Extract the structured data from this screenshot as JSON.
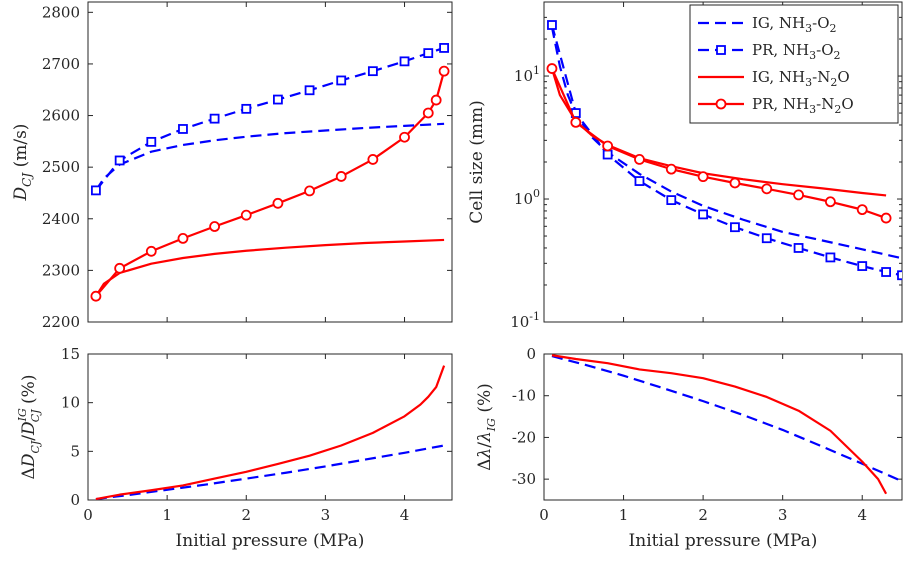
{
  "chart_data": [
    {
      "id": "dcj",
      "type": "line",
      "ylabel": "D_CJ (m/s)",
      "xlim": [
        0,
        4.6
      ],
      "ylim": [
        2200,
        2820
      ],
      "xticks": [],
      "yticks": [
        2200,
        2300,
        2400,
        2500,
        2600,
        2700,
        2800
      ],
      "series": [
        {
          "name": "IG, NH3-O2",
          "color": "#0000ff",
          "dash": "dashed",
          "marker": "none",
          "x": [
            0.1,
            0.2,
            0.4,
            0.8,
            1.2,
            1.6,
            2.0,
            2.5,
            3.0,
            3.5,
            4.0,
            4.5
          ],
          "y": [
            2455,
            2478,
            2505,
            2530,
            2543,
            2552,
            2559,
            2566,
            2571,
            2576,
            2580,
            2584
          ]
        },
        {
          "name": "PR, NH3-O2",
          "color": "#0000ff",
          "dash": "dashed",
          "marker": "square",
          "x": [
            0.1,
            0.4,
            0.8,
            1.2,
            1.6,
            2.0,
            2.4,
            2.8,
            3.2,
            3.6,
            4.0,
            4.3,
            4.5
          ],
          "y": [
            2455,
            2513,
            2549,
            2574,
            2594,
            2613,
            2631,
            2649,
            2668,
            2686,
            2705,
            2721,
            2731
          ]
        },
        {
          "name": "IG, NH3-N2O",
          "color": "#ff0000",
          "dash": "solid",
          "marker": "none",
          "x": [
            0.1,
            0.2,
            0.4,
            0.8,
            1.2,
            1.6,
            2.0,
            2.5,
            3.0,
            3.5,
            4.0,
            4.5
          ],
          "y": [
            2250,
            2274,
            2295,
            2313,
            2324,
            2332,
            2338,
            2344,
            2349,
            2353,
            2356,
            2359
          ]
        },
        {
          "name": "PR, NH3-N2O",
          "color": "#ff0000",
          "dash": "solid",
          "marker": "circle",
          "x": [
            0.1,
            0.4,
            0.8,
            1.2,
            1.6,
            2.0,
            2.4,
            2.8,
            3.2,
            3.6,
            4.0,
            4.3,
            4.4,
            4.5
          ],
          "y": [
            2250,
            2304,
            2337,
            2362,
            2385,
            2407,
            2430,
            2454,
            2482,
            2515,
            2558,
            2605,
            2630,
            2686
          ]
        }
      ]
    },
    {
      "id": "cell",
      "type": "line",
      "ylabel": "Cell size (mm)",
      "xlim": [
        0,
        4.5
      ],
      "ylim": [
        0.1,
        40
      ],
      "yscale": "log",
      "xticks": [],
      "yticks": [
        0.1,
        1,
        10
      ],
      "ytick_labels": [
        "10",
        "10",
        "10"
      ],
      "ytick_exponents": [
        "-1",
        "0",
        "1"
      ],
      "legend": {
        "placement": "top-right",
        "entries": [
          {
            "prefix": "IG, NH",
            "sub1": "3",
            "mid": "-O",
            "sub2": "2",
            "suffix": ""
          },
          {
            "prefix": "PR, NH",
            "sub1": "3",
            "mid": "-O",
            "sub2": "2",
            "suffix": ""
          },
          {
            "prefix": "IG, NH",
            "sub1": "3",
            "mid": "-N",
            "sub2": "2",
            "suffix": "O"
          },
          {
            "prefix": "PR, NH",
            "sub1": "3",
            "mid": "-N",
            "sub2": "2",
            "suffix": "O"
          }
        ]
      },
      "series": [
        {
          "name": "IG, NH3-O2",
          "color": "#0000ff",
          "dash": "dashed",
          "marker": "none",
          "x": [
            0.1,
            0.2,
            0.3,
            0.4,
            0.6,
            0.8,
            1.2,
            1.6,
            2.0,
            2.5,
            3.0,
            3.5,
            4.0,
            4.5
          ],
          "y": [
            25,
            12,
            7.0,
            4.9,
            3.2,
            2.4,
            1.6,
            1.15,
            0.88,
            0.68,
            0.54,
            0.46,
            0.39,
            0.33
          ]
        },
        {
          "name": "PR, NH3-O2",
          "color": "#0000ff",
          "dash": "dashed",
          "marker": "square",
          "x": [
            0.1,
            0.4,
            0.8,
            1.2,
            1.6,
            2.0,
            2.4,
            2.8,
            3.2,
            3.6,
            4.0,
            4.3,
            4.5
          ],
          "y": [
            26,
            5.0,
            2.3,
            1.4,
            0.98,
            0.75,
            0.59,
            0.48,
            0.4,
            0.335,
            0.285,
            0.255,
            0.24
          ]
        },
        {
          "name": "IG, NH3-N2O",
          "color": "#ff0000",
          "dash": "solid",
          "marker": "none",
          "x": [
            0.1,
            0.2,
            0.4,
            0.6,
            0.8,
            1.2,
            1.6,
            2.0,
            2.5,
            3.0,
            3.5,
            4.0,
            4.3
          ],
          "y": [
            11.5,
            7.0,
            4.3,
            3.3,
            2.75,
            2.15,
            1.85,
            1.62,
            1.45,
            1.32,
            1.22,
            1.12,
            1.07
          ]
        },
        {
          "name": "PR, NH3-N2O",
          "color": "#ff0000",
          "dash": "solid",
          "marker": "circle",
          "x": [
            0.1,
            0.4,
            0.8,
            1.2,
            1.6,
            2.0,
            2.4,
            2.8,
            3.2,
            3.6,
            4.0,
            4.3
          ],
          "y": [
            11.5,
            4.2,
            2.7,
            2.1,
            1.75,
            1.52,
            1.35,
            1.21,
            1.08,
            0.95,
            0.82,
            0.7
          ]
        }
      ]
    },
    {
      "id": "ddcj",
      "type": "line",
      "ylabel_parts": {
        "delta": "Δ",
        "d": "D",
        "sub1": "CJ",
        "slash": "/",
        "d2": "D",
        "sup": "IG",
        "sub2": "CJ",
        "unit": " (%)"
      },
      "xlabel": "Initial pressure (MPa)",
      "xlim": [
        0,
        4.6
      ],
      "ylim": [
        0,
        15
      ],
      "xticks": [
        0,
        1,
        2,
        3,
        4
      ],
      "yticks": [
        0,
        5,
        10,
        15
      ],
      "series": [
        {
          "name": "NH3-O2",
          "color": "#0000ff",
          "dash": "dashed",
          "x": [
            0.1,
            0.5,
            1.0,
            1.5,
            2.0,
            2.5,
            3.0,
            3.5,
            4.0,
            4.5
          ],
          "y": [
            0.1,
            0.5,
            1.05,
            1.6,
            2.2,
            2.8,
            3.45,
            4.15,
            4.85,
            5.6
          ]
        },
        {
          "name": "NH3-N2O",
          "color": "#ff0000",
          "dash": "solid",
          "x": [
            0.1,
            0.4,
            0.8,
            1.2,
            1.6,
            2.0,
            2.4,
            2.8,
            3.2,
            3.6,
            4.0,
            4.2,
            4.3,
            4.4,
            4.5
          ],
          "y": [
            0.1,
            0.55,
            1.0,
            1.5,
            2.2,
            2.9,
            3.7,
            4.55,
            5.6,
            6.9,
            8.6,
            9.8,
            10.6,
            11.6,
            13.8
          ]
        }
      ]
    },
    {
      "id": "dlam",
      "type": "line",
      "ylabel_parts": {
        "delta": "Δ",
        "lam": "λ",
        "slash": "/",
        "lam2": "λ",
        "sub": "IG",
        "unit": " (%)"
      },
      "xlabel": "Initial pressure (MPa)",
      "xlim": [
        0,
        4.5
      ],
      "ylim": [
        -35,
        0
      ],
      "xticks": [
        0,
        1,
        2,
        3,
        4
      ],
      "yticks": [
        -30,
        -20,
        -10,
        0
      ],
      "series": [
        {
          "name": "NH3-O2",
          "color": "#0000ff",
          "dash": "dashed",
          "x": [
            0.1,
            0.5,
            1.0,
            1.5,
            2.0,
            2.5,
            3.0,
            3.5,
            4.0,
            4.5
          ],
          "y": [
            -0.5,
            -2.5,
            -5.2,
            -8.2,
            -11.3,
            -14.6,
            -18.2,
            -22.2,
            -26.3,
            -30.5
          ]
        },
        {
          "name": "NH3-N2O",
          "color": "#ff0000",
          "dash": "solid",
          "x": [
            0.1,
            0.4,
            0.8,
            1.2,
            1.6,
            2.0,
            2.4,
            2.8,
            3.2,
            3.6,
            4.0,
            4.2,
            4.3
          ],
          "y": [
            -0.3,
            -1.2,
            -2.2,
            -3.7,
            -4.6,
            -5.8,
            -7.8,
            -10.3,
            -13.6,
            -18.4,
            -25.8,
            -30.0,
            -33.5
          ]
        }
      ]
    }
  ]
}
